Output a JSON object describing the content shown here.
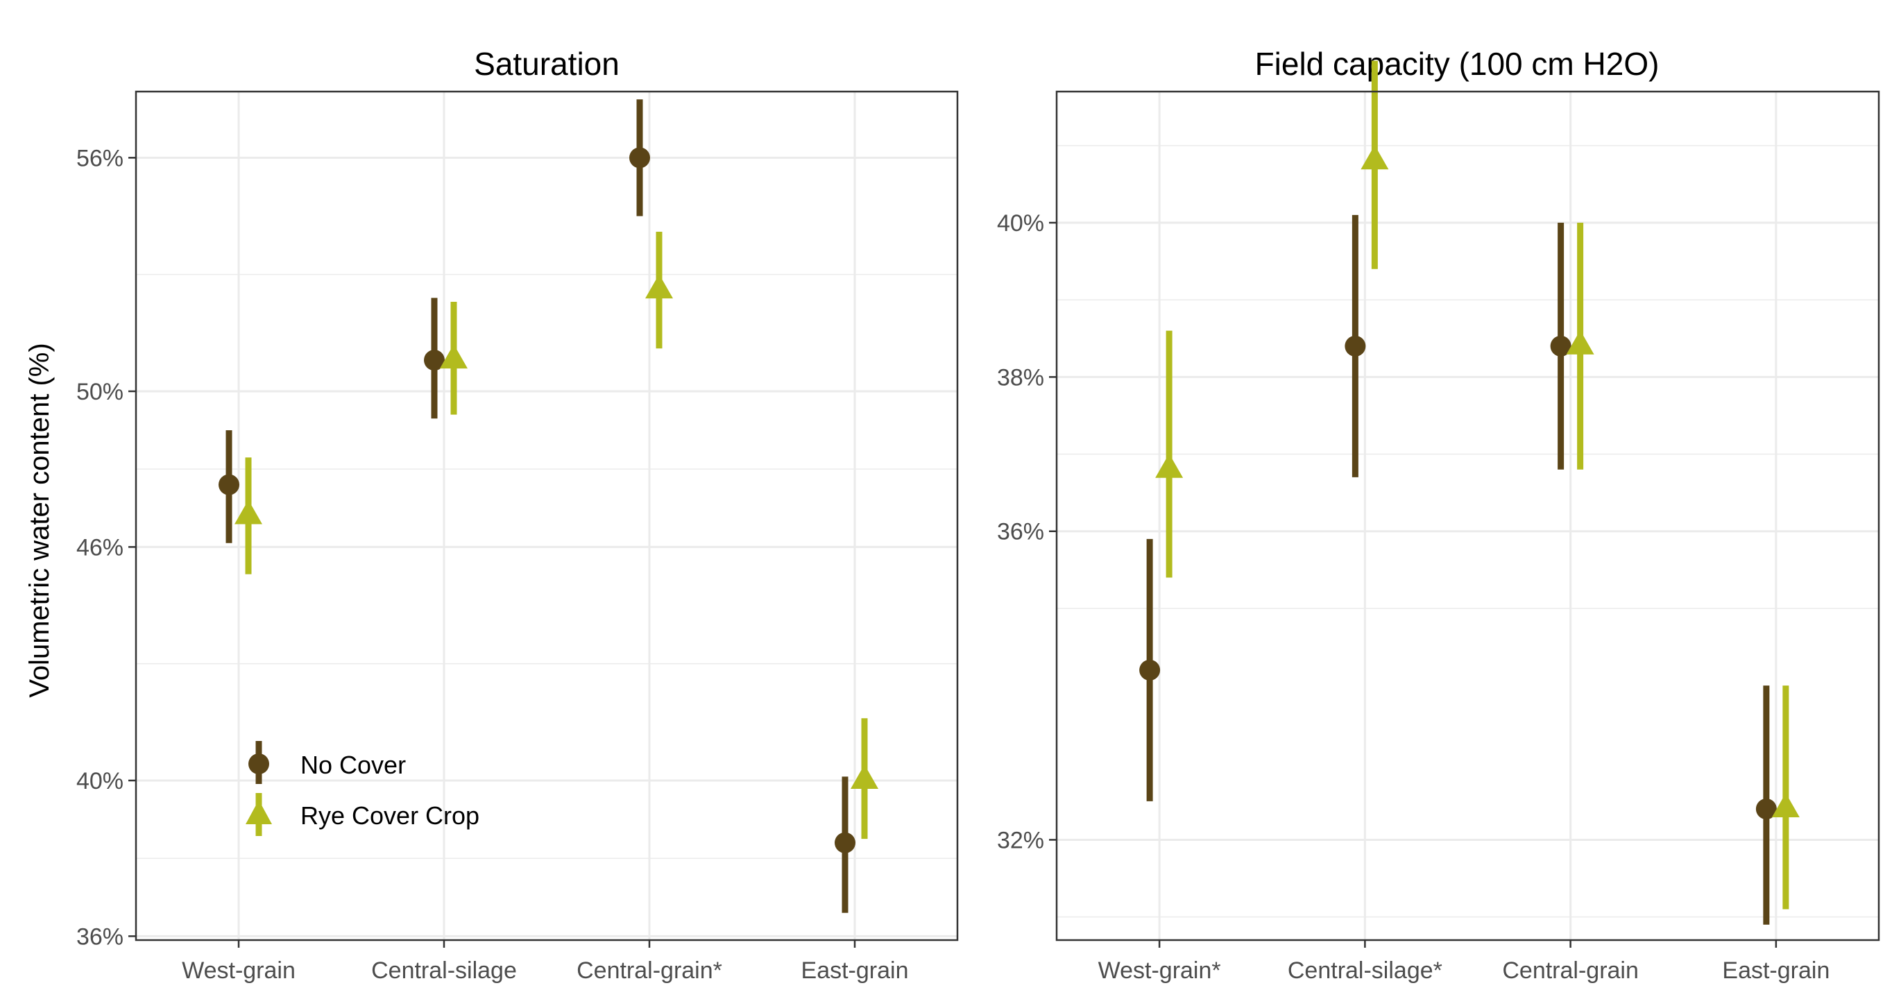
{
  "figure": {
    "ylabel": "Volumetric water content (%)",
    "colors": {
      "no_cover": "#5a4417",
      "rye": "#b2bb1e",
      "grid": "#ebebeb",
      "axis_text": "#4d4d4d",
      "title_text": "#1a1a1a"
    },
    "legend": {
      "position": "inside-bottom-left",
      "items": [
        {
          "label": "No Cover",
          "shape": "circle",
          "color_key": "no_cover"
        },
        {
          "label": "Rye Cover Crop",
          "shape": "triangle",
          "color_key": "rye"
        }
      ]
    }
  },
  "chart_data": [
    {
      "type": "scatter",
      "title": "Saturation",
      "xlabel": "",
      "ylabel": "Volumetric water content (%)",
      "categories": [
        "West-grain",
        "Central-silage",
        "Central-grain*",
        "East-grain"
      ],
      "ylim": [
        35.9,
        57.7
      ],
      "yticks": [
        36,
        40,
        46,
        50,
        56
      ],
      "ytick_labels": [
        "36%",
        "40%",
        "46%",
        "50%",
        "56%"
      ],
      "ygrid_minor": [
        38,
        43,
        48,
        53
      ],
      "grid": true,
      "series": [
        {
          "name": "No Cover",
          "values": [
            47.6,
            50.8,
            56.0,
            38.4
          ],
          "lower": [
            46.1,
            49.3,
            54.5,
            36.6
          ],
          "upper": [
            49.0,
            52.4,
            57.5,
            40.1
          ]
        },
        {
          "name": "Rye Cover Crop",
          "values": [
            46.8,
            50.8,
            52.6,
            40.0
          ],
          "lower": [
            45.3,
            49.4,
            51.1,
            38.5
          ],
          "upper": [
            48.3,
            52.3,
            54.1,
            41.6
          ]
        }
      ]
    },
    {
      "type": "scatter",
      "title": "Field capacity (100 cm H2O)",
      "xlabel": "",
      "categories": [
        "West-grain*",
        "Central-silage*",
        "Central-grain",
        "East-grain"
      ],
      "ylim": [
        30.7,
        41.7
      ],
      "yticks": [
        32,
        36,
        38,
        40
      ],
      "ytick_labels": [
        "32%",
        "36%",
        "38%",
        "40%"
      ],
      "ygrid_minor": [
        31,
        35,
        37,
        39,
        41
      ],
      "grid": true,
      "series": [
        {
          "name": "No Cover",
          "values": [
            34.2,
            38.4,
            38.4,
            32.4
          ],
          "lower": [
            32.5,
            36.7,
            36.8,
            30.9
          ],
          "upper": [
            35.9,
            40.1,
            40.0,
            34.0
          ]
        },
        {
          "name": "Rye Cover Crop",
          "values": [
            36.8,
            40.8,
            38.4,
            32.4
          ],
          "lower": [
            35.4,
            39.4,
            36.8,
            31.1
          ],
          "upper": [
            38.6,
            42.1,
            40.0,
            34.0
          ]
        }
      ]
    }
  ]
}
